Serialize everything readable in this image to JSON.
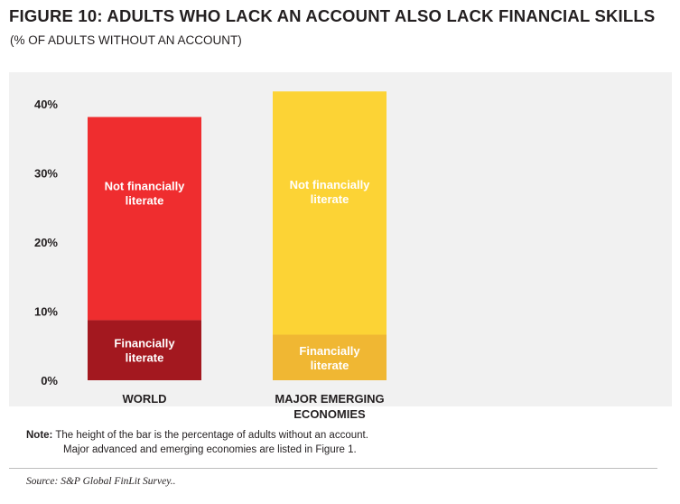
{
  "title": "FIGURE 10: ADULTS WHO LACK AN ACCOUNT ALSO LACK FINANCIAL SKILLS",
  "subtitle": "(% OF ADULTS WITHOUT AN ACCOUNT)",
  "chart_data": {
    "type": "bar",
    "stacked": true,
    "categories": [
      "WORLD",
      "MAJOR EMERGING ECONOMIES"
    ],
    "series": [
      {
        "name": "Financially literate",
        "values": [
          8.7,
          6.6
        ],
        "colors": [
          "#a3181f",
          "#f0b733"
        ]
      },
      {
        "name": "Not financially literate",
        "values": [
          29.4,
          35.2
        ],
        "colors": [
          "#ef2d2f",
          "#fcd335"
        ]
      }
    ],
    "ylim": [
      0,
      40
    ],
    "yticks": [
      "0%",
      "10%",
      "20%",
      "30%",
      "40%"
    ],
    "grid": false,
    "legend": "none"
  },
  "bar_labels": {
    "world": {
      "lower": [
        "Financially",
        "literate"
      ],
      "upper": [
        "Not financially",
        "literate"
      ]
    },
    "emerging": {
      "lower": [
        "Financially",
        "literate"
      ],
      "upper": [
        "Not financially",
        "literate"
      ]
    }
  },
  "category_labels": {
    "world": [
      "WORLD"
    ],
    "emerging": [
      "MAJOR EMERGING",
      "ECONOMIES"
    ]
  },
  "note": {
    "label": "Note:",
    "line1": "The height of the bar is the percentage of adults without an account.",
    "line2": "Major advanced and emerging economies are listed in Figure 1."
  },
  "source": "Source: S&P Global FinLit Survey.."
}
